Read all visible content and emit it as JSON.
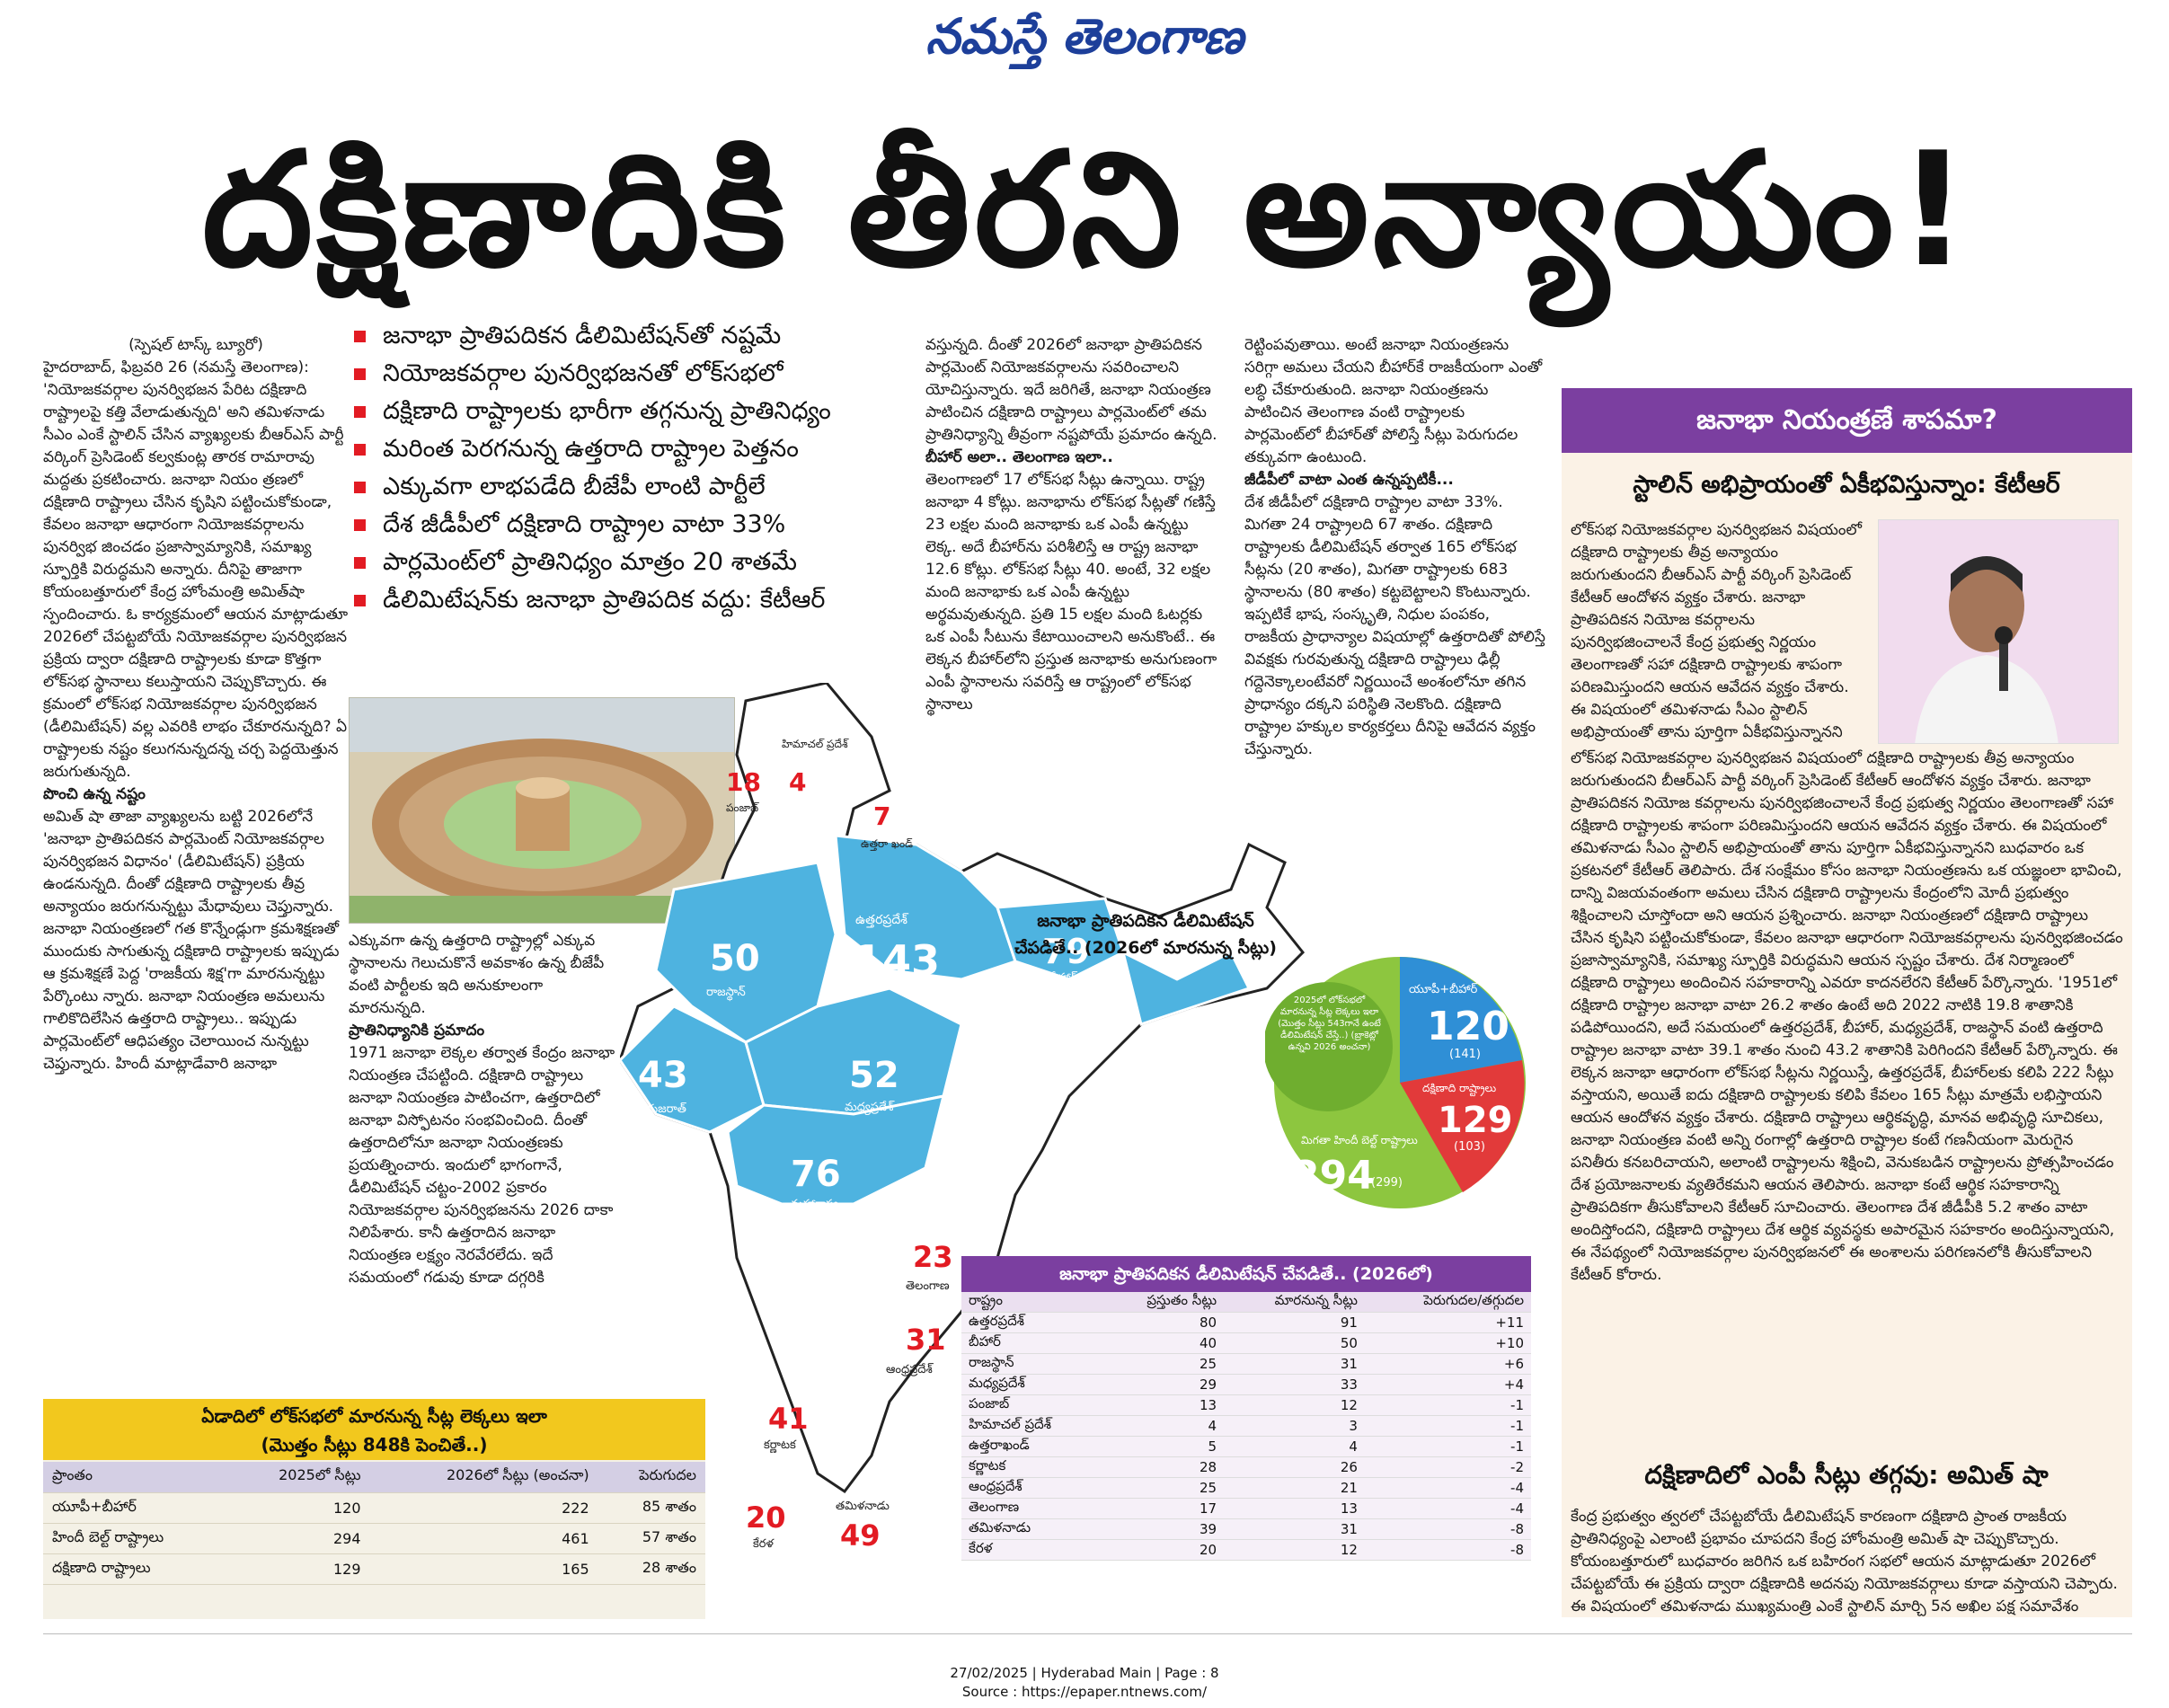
{
  "masthead": "నమస్తే తెలంగాణ",
  "headline": "దక్షిణాదికి తీరని అన్యాయం!",
  "bullets": [
    "జనాభా ప్రాతిపదికన డీలిమిటేషన్‌తో నష్టమే",
    "నియోజకవర్గాల పునర్విభజనతో లోక్‌సభలో",
    "దక్షిణాది రాష్ట్రాలకు భారీగా తగ్గనున్న ప్రాతినిధ్యం",
    "మరింత పెరగనున్న ఉత్తరాది రాష్ట్రాల పెత్తనం",
    "ఎక్కువగా లాభపడేది బీజేపీ లాంటి పార్టీలే",
    "దేశ జీడీపీలో దక్షిణాది రాష్ట్రాల వాటా 33%",
    "పార్లమెంట్‌లో ప్రాతినిధ్యం మాత్రం 20 శాతమే",
    "డీలిమిటేషన్‌కు జనాభా ప్రాతిపదిక వద్దు: కేటీఆర్"
  ],
  "col1": {
    "byline": "(స్పెషల్ టాస్క్ బ్యూరో)",
    "p1": "హైదరాబాద్, ఫిబ్రవరి 26 (నమస్తే తెలంగాణ): 'నియోజకవర్గాల పునర్విభజన పేరిట దక్షిణాది రాష్ట్రాలపై కత్తి వేలాడుతున్నది' అని తమిళనాడు సీఎం ఎంకే స్టాలిన్ చేసిన వ్యాఖ్యలకు బీఆర్‌ఎస్ పార్టీ వర్కింగ్ ప్రెసిడెంట్ కల్వకుంట్ల తారక రామారావు మద్దతు ప్రకటించారు. జనాభా నియం త్రణలో దక్షిణాది రాష్ట్రాలు చేసిన కృషిని పట్టించుకోకుండా, కేవలం జనాభా ఆధారంగా నియోజకవర్గాలను పునర్విభ జించడం ప్రజాస్వామ్యానికి, సమాఖ్య స్ఫూర్తికి విరుద్ధమని అన్నారు. దీనిపై తాజాగా కోయంబత్తూరులో కేంద్ర హోంమంత్రి అమిత్‌షా స్పందించారు. ఓ కార్యక్రమంలో ఆయన మాట్లాడుతూ 2026లో చేపట్టబోయే నియోజకవర్గాల పునర్విభజన ప్రక్రియ ద్వారా దక్షిణాది రాష్ట్రాలకు కూడా కొత్తగా లోక్‌సభ స్థానాలు కలుస్తాయని చెప్పుకొచ్చారు. ఈ క్రమంలో లోక్‌సభ నియోజకవర్గాల పునర్విభజన (డీలిమిటేషన్) వల్ల ఎవరికి లాభం చేకూరనున్నది? ఏ రాష్ట్రాలకు నష్టం కలుగనున్నదన్న చర్చ పెద్దయెత్తున జరుగుతున్నది.",
    "sub": "పొంచి ఉన్న నష్టం",
    "p2": "అమిత్ షా తాజా వ్యాఖ్యలను బట్టి 2026లోనే 'జనాభా ప్రాతిపదికన పార్లమెంట్ నియోజకవర్గాల పునర్విభజన విధానం' (డీలిమిటేషన్) ప్రక్రియ ఉండనున్నది. దీంతో దక్షిణాది రాష్ట్రాలకు తీవ్ర అన్యాయం జరుగనున్నట్టు మేధావులు చెప్తున్నారు. జనాభా నియంత్రణలో గత కొన్నేండ్లుగా క్రమశిక్షణతో ముందుకు సాగుతున్న దక్షిణాది రాష్ట్రాలకు ఇప్పుడు ఆ క్రమశిక్షణే పెద్ద 'రాజకీయ శిక్ష'గా మారనున్నట్టు పేర్కొంటు న్నారు. జనాభా నియంత్రణ అమలును గాలికొదిలేసిన ఉత్తరాది రాష్ట్రాలు.. ఇప్పుడు పార్లమెంట్‌లో ఆధిపత్యం చెలాయించ నున్నట్టు చెప్తున్నారు. హిందీ మాట్లాడేవారి జనాభా"
  },
  "col2": {
    "p1": "ఎక్కువగా ఉన్న ఉత్తరాది రాష్ట్రాల్లో ఎక్కువ స్థానాలను గెలుచుకొనే అవకాశం ఉన్న బీజేపీ వంటి పార్టీలకు ఇది అనుకూలంగా మారనున్నది.",
    "sub": "ప్రాతినిధ్యానికి ప్రమాదం",
    "p2": "1971 జనాభా లెక్కల తర్వాత కేంద్రం జనాభా నియంత్రణ చేపట్టింది. దక్షిణాది రాష్ట్రాలు జనాభా నియంత్రణ పాటించగా, ఉత్తరాదిలో జనాభా విస్ఫోటనం సంభవించింది. దీంతో ఉత్తరాదిలోనూ జనాభా నియంత్రణకు ప్రయత్నించారు. ఇందులో భాగంగానే, డీలిమిటేషన్ చట్టం-2002 ప్రకారం నియోజకవర్గాల పునర్విభజనను 2026 దాకా నిలిపేశారు. కానీ ఉత్తరాదిన జనాభా నియంత్రణ లక్ష్యం నెరవేరలేదు. ఇదే సమయంలో గడువు కూడా దగ్గరికి"
  },
  "col3": {
    "p1": "వస్తున్నది. దీంతో 2026లో జనాభా ప్రాతిపదికన పార్లమెంట్ నియోజకవర్గాలను సవరించాలని యోచిస్తున్నారు. ఇదే జరిగితే, జనాభా నియంత్రణ పాటించిన దక్షిణాది రాష్ట్రాలు పార్లమెంట్‌లో తమ ప్రాతినిధ్యాన్ని తీవ్రంగా నష్టపోయే ప్రమాదం ఉన్నది.",
    "sub": "బీహార్ అలా.. తెలంగాణ ఇలా..",
    "p2": "తెలంగాణలో 17 లోక్‌సభ సీట్లు ఉన్నాయి. రాష్ట్ర జనాభా 4 కోట్లు. జనాభాను లోక్‌సభ సీట్లతో గణిస్తే 23 లక్షల మంది జనాభాకు ఒక ఎంపీ ఉన్నట్టు లెక్క. అదే బీహార్‌ను పరిశీలిస్తే ఆ రాష్ట్ర జనాభా 12.6 కోట్లు. లోక్‌సభ సీట్లు 40. అంటే, 32 లక్షల మంది జనాభాకు ఒక ఎంపీ ఉన్నట్టు అర్థమవుతున్నది. ప్రతి 15 లక్షల మంది ఓటర్లకు ఒక ఎంపీ సీటును కేటాయించాలని అనుకొంటే.. ఈ లెక్కన బీహార్‌లోని ప్రస్తుత జనాభాకు అనుగుణంగా ఎంపీ స్థానాలను సవరిస్తే ఆ రాష్ట్రంలో లోక్‌సభ స్థానాలు"
  },
  "col4": {
    "p1": "రెట్టింపవుతాయి. అంటే జనాభా నియంత్రణను సరిగ్గా అమలు చేయని బీహార్‌కే రాజకీయంగా ఎంతో లబ్ధి చేకూరుతుంది. జనాభా నియంత్రణను పాటించిన తెలంగాణ వంటి రాష్ట్రాలకు పార్లమెంట్‌లో బీహార్‌తో పోలిస్తే సీట్లు పెరుగుదల తక్కువగా ఉంటుంది.",
    "sub": "జీడీపీలో వాటా ఎంత ఉన్నప్పటికీ...",
    "p2": "దేశ జీడీపీలో దక్షిణాది రాష్ట్రాల వాటా 33%. మిగతా 24 రాష్ట్రాలది 67 శాతం. దక్షిణాది రాష్ట్రాలకు డీలిమిటేషన్ తర్వాత 165 లోక్‌సభ సీట్లను (20 శాతం), మిగతా రాష్ట్రాలకు 683 స్థానాలను (80 శాతం) కట్టబెట్టాలని కొంటున్నారు. ఇప్పటికే భాష, సంస్కృతి, నిధుల పంపకం, రాజకీయ ప్రాధాన్యాల విషయాల్లో ఉత్తరాదితో పోలిస్తే వివక్షకు గురవుతున్న దక్షిణాది రాష్ట్రాలు ఢిల్లీ గద్దెనెక్కాలంటేవరో నిర్ణయించే అంశంలోనూ తగిన ప్రాధాన్యం దక్కని పరిస్థితి నెలకొంది. దక్షిణాది రాష్ట్రాల హక్కుల కార్యకర్తలు దీనిపై ఆవేదన వ్యక్తం చేస్తున్నారు."
  },
  "right_panel": {
    "banner": "జనాభా నియంత్రణే శాపమా?",
    "subhead": "స్టాలిన్ అభిప్రాయంతో ఏకీభవిస్తున్నాం: కేటీఆర్",
    "p1": "లోక్‌సభ నియోజకవర్గాల పునర్విభజన విషయంలో దక్షిణాది రాష్ట్రాలకు తీవ్ర అన్యాయం జరుగుతుందని బీఆర్‌ఎస్ పార్టీ వర్కింగ్ ప్రెసిడెంట్ కేటీఆర్ ఆందోళన వ్యక్తం చేశారు. జనాభా ప్రాతిపదికన నియోజ కవర్గాలను పునర్విభజించాలనే కేంద్ర ప్రభుత్వ నిర్ణయం తెలంగాణతో సహా దక్షిణాది రాష్ట్రాలకు శాపంగా పరిణమిస్తుందని ఆయన ఆవేదన వ్యక్తం చేశారు. ఈ విషయంలో తమిళనాడు సీఎం స్టాలిన్ అభిప్రాయంతో తాను పూర్తిగా ఏకీభవిస్తున్నానని బుధవారం ఒక ప్రకటనలో కేటీఆర్ తెలిపారు. దేశ సంక్షేమం కోసం జనాభా నియంత్రణను ఒక యజ్ఞంలా భావించి, దాన్ని విజయవంతంగా అమలు చేసిన దక్షిణాది రాష్ట్రాలను కేంద్రంలోని మోదీ ప్రభుత్వం శిక్షించాలని చూస్తోందా అని ఆయన ప్రశ్నించారు. జనాభా నియంత్రణలో దక్షిణాది రాష్ట్రాలు చేసిన కృషిని పట్టించుకోకుండా, కేవలం జనాభా ఆధారంగా నియోజకవర్గాలను పునర్విభజించడం ప్రజాస్వామ్యానికి, సమాఖ్య స్ఫూర్తికి విరుద్ధమని ఆయన స్పష్టం చేశారు. దేశ నిర్మాణంలో దక్షిణాది రాష్ట్రాలు అందించిన సహకారాన్ని ఎవరూ కాదనలేరని కేటీఆర్ పేర్కొన్నారు. '1951లో దక్షిణాది రాష్ట్రాల జనాభా వాటా 26.2 శాతం ఉంటే అది 2022 నాటికి 19.8 శాతానికి పడిపోయిందని, అదే సమయంలో ఉత్తరప్రదేశ్, బీహార్, మధ్యప్రదేశ్, రాజస్థాన్ వంటి ఉత్తరాది రాష్ట్రాల జనాభా వాటా 39.1 శాతం నుంచి 43.2 శాతానికి పెరిగిందని కేటీఆర్ పేర్కొన్నారు. ఈ లెక్కన జనాభా ఆధారంగా లోక్‌సభ సీట్లను నిర్ణయిస్తే, ఉత్తరప్రదేశ్, బీహార్‌లకు కలిపి 222 సీట్లు వస్తాయని, అయితే ఐదు దక్షిణాది రాష్ట్రాలకు కలిపి కేవలం 165 సీట్లు మాత్రమే లభిస్తాయని ఆయన ఆందోళన వ్యక్తం చేశారు. దక్షిణాది రాష్ట్రాలు ఆర్థికవృద్ధి, మానవ అభివృద్ధి సూచికలు, జనాభా నియంత్రణ వంటి అన్ని రంగాల్లో ఉత్తరాది రాష్ట్రాల కంటే గణనీయంగా మెరుగైన పనితీరు కనబరిచాయని, అలాంటి రాష్ట్రాలను శిక్షించి, వెనుకబడిన రాష్ట్రాలను ప్రోత్సహించడం దేశ ప్రయోజనాలకు వ్యతిరేకమని ఆయన తెలిపారు. జనాభా కంటే ఆర్థిక సహకారాన్ని ప్రాతిపదికగా తీసుకోవాలని కేటీఆర్ సూచించారు. తెలంగాణ దేశ జీడీపీకి 5.2 శాతం వాటా అందిస్తోందని, దక్షిణాది రాష్ట్రాలు దేశ ఆర్థిక వ్యవస్థకు అపారమైన సహకారం అందిస్తున్నాయని, ఈ నేపథ్యంలో నియోజకవర్గాల పునర్విభజనలో ఈ అంశాలను పరిగణనలోకి తీసుకోవాలని కేటీఆర్ కోరారు.",
    "subhead2": "దక్షిణాదిలో ఎంపీ సీట్లు తగ్గవు: అమిత్ షా",
    "p2": "కేంద్ర ప్రభుత్వం త్వరలో చేపట్టబోయే డీలిమిటేషన్ కారణంగా దక్షిణాది ప్రాంత రాజకీయ ప్రాతినిధ్యంపై ఎలాంటి ప్రభావం చూపదని కేంద్ర హోంమంత్రి అమిత్ షా చెప్పుకొచ్చారు. కోయంబత్తూరులో బుధవారం జరిగిన ఒక బహిరంగ సభలో ఆయన మాట్లాడుతూ 2026లో చేపట్టబోయే ఈ ప్రక్రియ ద్వారా దక్షిణాదికి అదనపు నియోజకవర్గాలు కూడా వస్తాయని చెప్పారు. ఈ విషయంలో తమిళనాడు ముఖ్యమంత్రి ఎంకే స్టాలిన్ మార్చి 5న అఖిల పక్ష సమావేశం ఏర్పాటు చేసి ప్రజలను తప్పుదోవ పట్టిస్తున్నారని ఆయన ఆరోపించారు."
  },
  "map": {
    "title_line1": "జనాభా ప్రాతిపదికన డీలిమిటేషన్",
    "title_line2": "చేపడితే.. (2026లో మారనున్న సీట్లు)",
    "highlight_color": "#4eb3e0",
    "states": [
      {
        "name": "ఉత్తరప్రదేశ్",
        "seats": "143"
      },
      {
        "name": "బీహార్",
        "seats": "79"
      },
      {
        "name": "రాజస్థాన్",
        "seats": "50"
      },
      {
        "name": "గుజరాత్",
        "seats": "43"
      },
      {
        "name": "మధ్యప్రదేశ్",
        "seats": "52"
      },
      {
        "name": "మహారాష్ట్ర",
        "seats": "76"
      },
      {
        "name": "తెలంగాణ",
        "seats": "23"
      },
      {
        "name": "ఆంధ్రప్రదేశ్",
        "seats": "31"
      },
      {
        "name": "కర్ణాటక",
        "seats": "41"
      },
      {
        "name": "తమిళనాడు",
        "seats": "49"
      },
      {
        "name": "కేరళ",
        "seats": "20"
      },
      {
        "name": "పంజాబ్",
        "seats": "18"
      },
      {
        "name": "హిమాచల్ ప్రదేశ్",
        "seats": "4"
      },
      {
        "name": "ఉత్తరా ఖండ్",
        "seats": "7"
      }
    ]
  },
  "pie": {
    "center_text": "2025లో లోక్‌సభలో మారనున్న సీట్ల లెక్కలు ఇలా (మొత్తం సీట్లు 543గానే ఉంటే డీలిమిటేషన్ చేస్తే..) (బ్రాకెట్లో ఉన్నవి 2026 అంచనా)",
    "segments": [
      {
        "label": "యూపీ+బీహార్",
        "value": "120",
        "bracket": "(141)",
        "color": "#2f8fd6"
      },
      {
        "label": "దక్షిణాది రాష్ట్రాలు",
        "value": "129",
        "bracket": "(103)",
        "color": "#e23a3a"
      },
      {
        "label": "మిగతా హిందీ బెల్ట్ రాష్ట్రాలు",
        "value": "294",
        "bracket": "(299)",
        "color": "#8dc63f"
      }
    ]
  },
  "table1": {
    "title": "ఏడాదిలో లోక్‌సభలో మారనున్న సీట్ల లెక్కలు ఇలా",
    "subtitle": "(మొత్తం సీట్లు 848కి పెంచితే..)",
    "headers": [
      "ప్రాంతం",
      "2025లో సీట్లు",
      "2026లో సీట్లు (అంచనా)",
      "పెరుగుదల"
    ],
    "rows": [
      [
        "యూపీ+బీహార్",
        "120",
        "222",
        "85 శాతం"
      ],
      [
        "హిందీ బెల్ట్ రాష్ట్రాలు",
        "294",
        "461",
        "57 శాతం"
      ],
      [
        "దక్షిణాది రాష్ట్రాలు",
        "129",
        "165",
        "28 శాతం"
      ]
    ]
  },
  "table2": {
    "title": "జనాభా ప్రాతిపదికన డీలిమిటేషన్ చేపడితే.. (2026లో)",
    "headers": [
      "రాష్ట్రం",
      "ప్రస్తుతం సీట్లు",
      "మారనున్న సీట్లు",
      "పెరుగుదల/తగ్గుదల"
    ],
    "rows": [
      [
        "ఉత్తరప్రదేశ్",
        "80",
        "91",
        "+11"
      ],
      [
        "బీహార్",
        "40",
        "50",
        "+10"
      ],
      [
        "రాజస్థాన్",
        "25",
        "31",
        "+6"
      ],
      [
        "మధ్యప్రదేశ్",
        "29",
        "33",
        "+4"
      ],
      [
        "పంజాబ్",
        "13",
        "12",
        "-1"
      ],
      [
        "హిమాచల్ ప్రదేశ్",
        "4",
        "3",
        "-1"
      ],
      [
        "ఉత్తరాఖండ్",
        "5",
        "4",
        "-1"
      ],
      [
        "కర్ణాటక",
        "28",
        "26",
        "-2"
      ],
      [
        "ఆంధ్రప్రదేశ్",
        "25",
        "21",
        "-4"
      ],
      [
        "తెలంగాణ",
        "17",
        "13",
        "-4"
      ],
      [
        "తమిళనాడు",
        "39",
        "31",
        "-8"
      ],
      [
        "కేరళ",
        "20",
        "12",
        "-8"
      ]
    ]
  },
  "footer": {
    "line1": "27/02/2025 | Hyderabad Main | Page : 8",
    "line2": "Source : https://epaper.ntnews.com/"
  }
}
